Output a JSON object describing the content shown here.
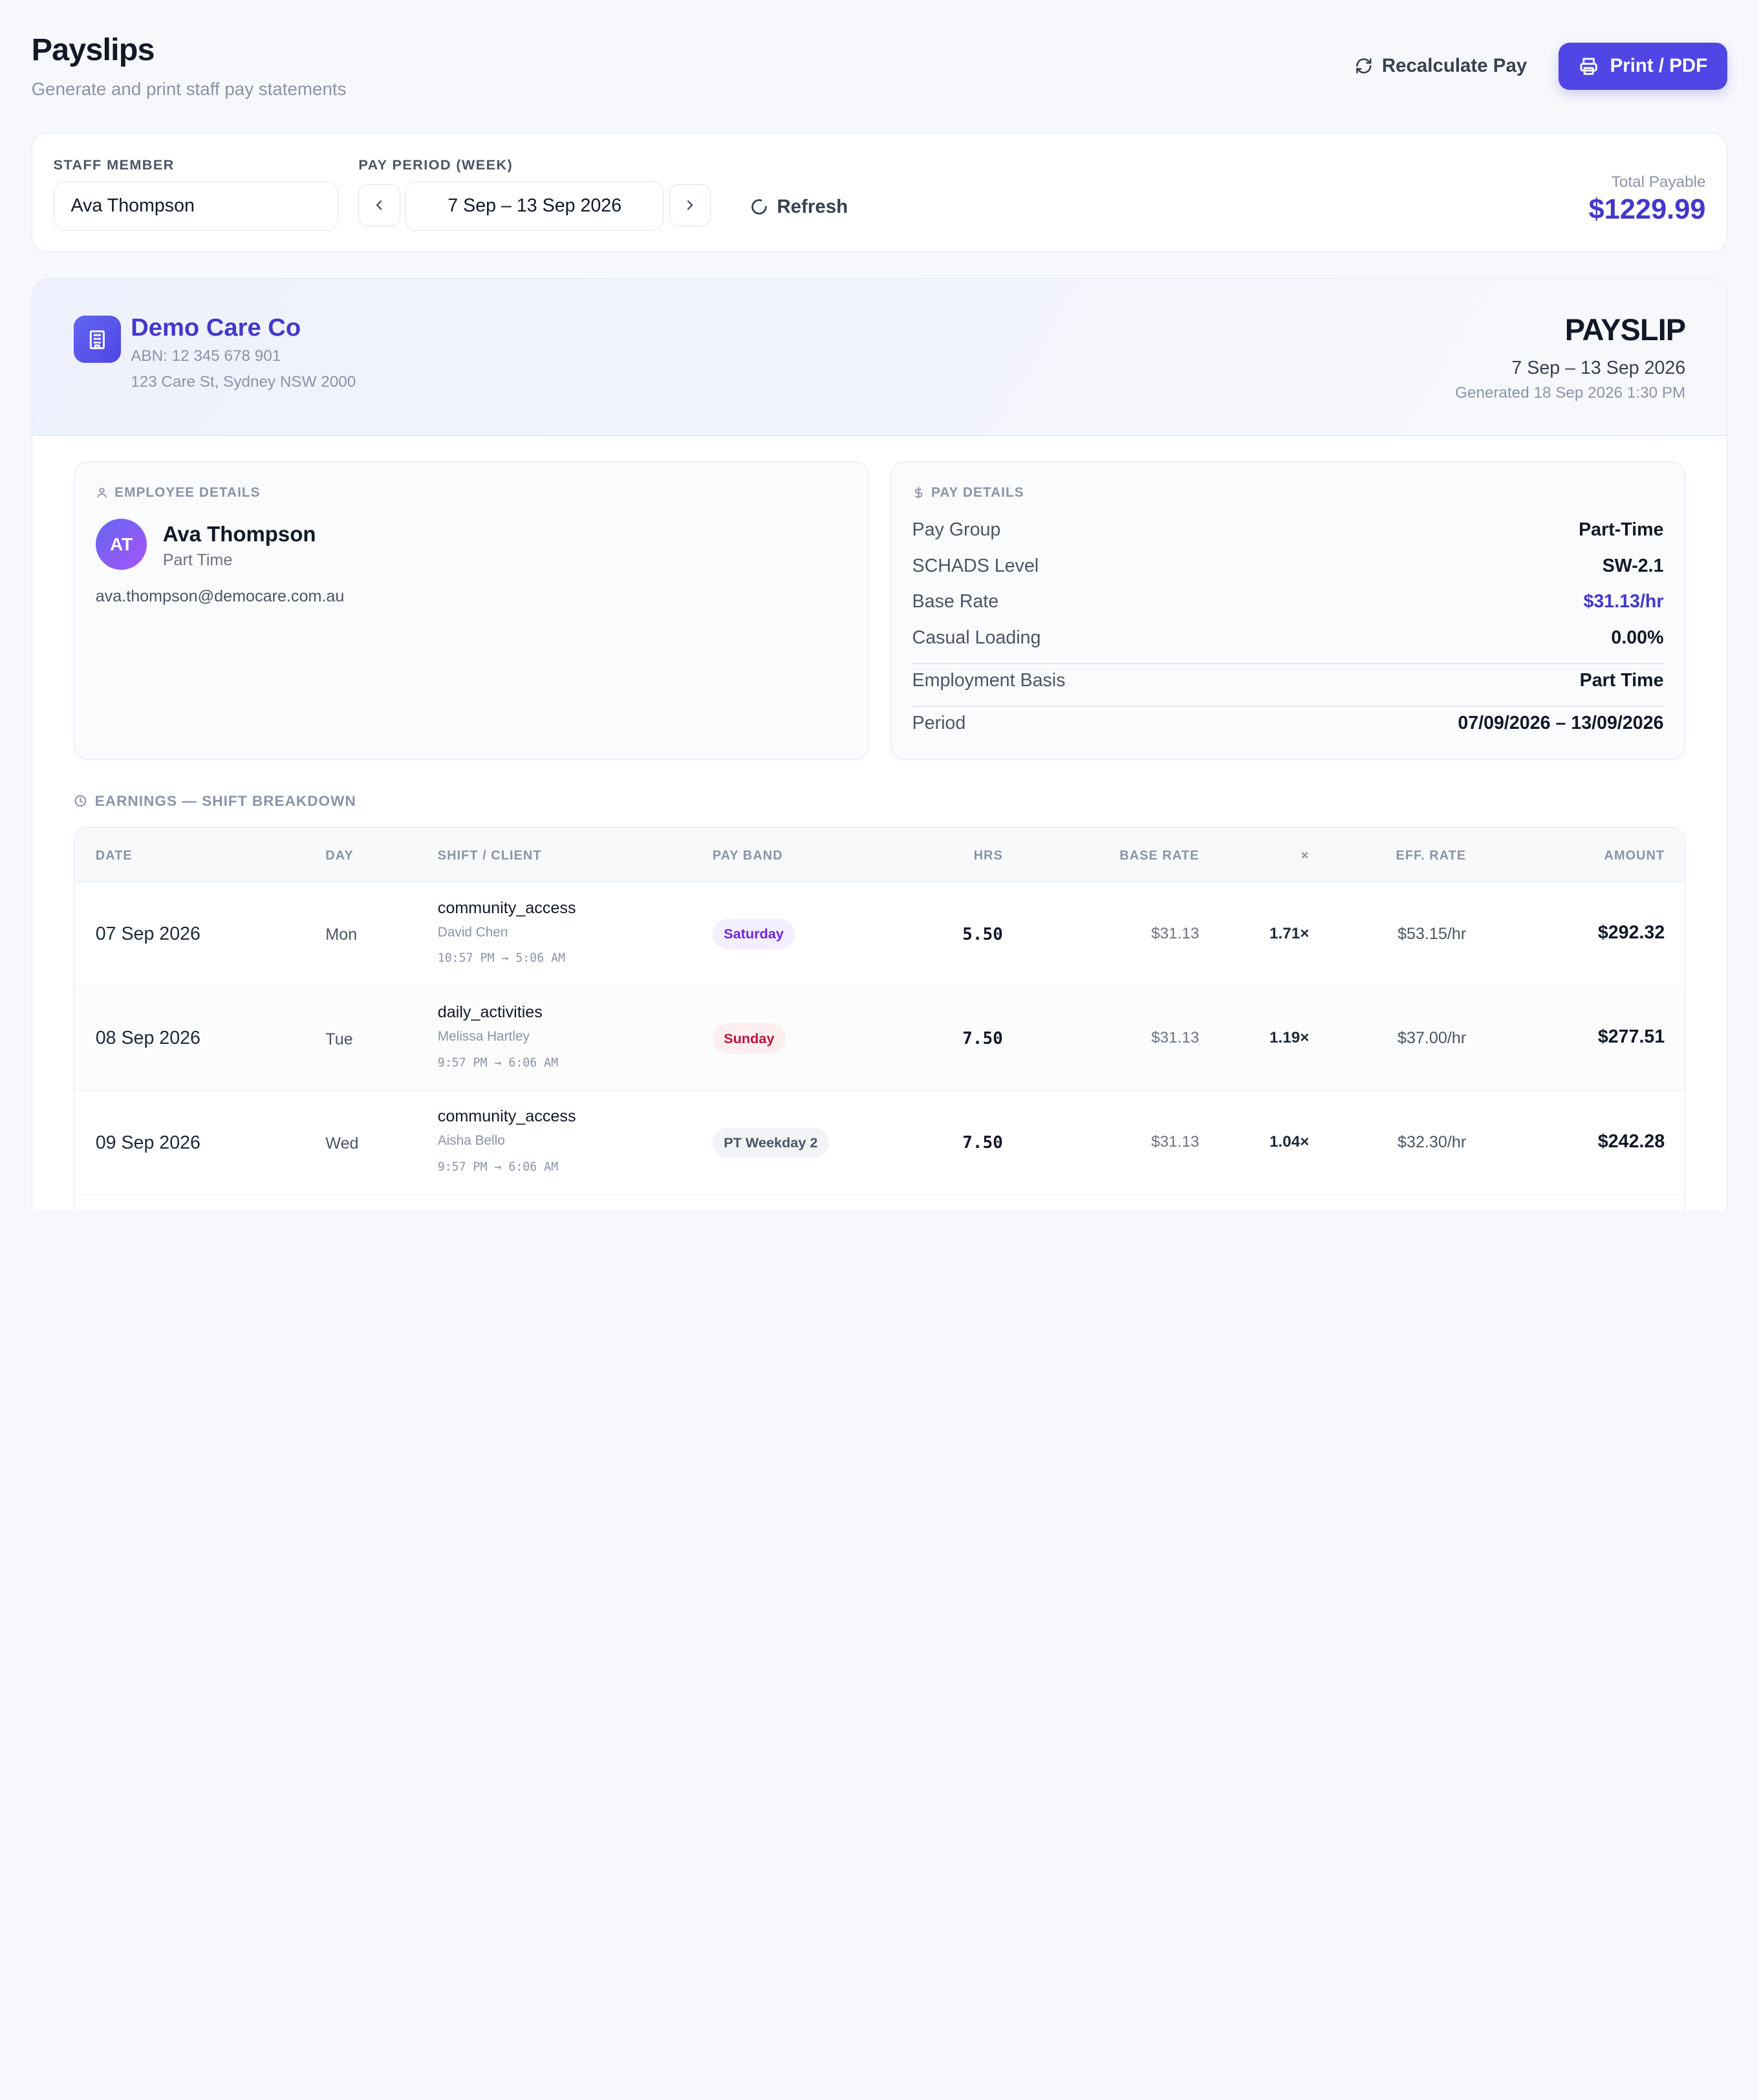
{
  "header": {
    "title": "Payslips",
    "subtitle": "Generate and print staff pay statements",
    "recalc_label": "Recalculate Pay",
    "print_label": "Print / PDF"
  },
  "filter": {
    "staff_label": "STAFF MEMBER",
    "staff_value": "Ava Thompson",
    "period_label": "PAY PERIOD (WEEK)",
    "period_value": "7 Sep – 13 Sep 2026",
    "refresh_label": "Refresh",
    "total_label": "Total Payable",
    "total_value": "$1229.99"
  },
  "company": {
    "name": "Demo Care Co",
    "abn": "ABN: 12 345 678 901",
    "address": "123 Care St, Sydney NSW 2000"
  },
  "payslip": {
    "title": "PAYSLIP",
    "period": "7 Sep – 13 Sep 2026",
    "generated": "Generated 18 Sep 2026 1:30 PM"
  },
  "employee": {
    "section_label": "EMPLOYEE DETAILS",
    "initials": "AT",
    "name": "Ava Thompson",
    "type": "Part Time",
    "email": "ava.thompson@democare.com.au"
  },
  "pay_details": {
    "section_label": "PAY DETAILS",
    "rows": [
      {
        "key": "Pay Group",
        "value": "Part-Time"
      },
      {
        "key": "SCHADS Level",
        "value": "SW-2.1"
      },
      {
        "key": "Base Rate",
        "value": "$31.13/hr"
      },
      {
        "key": "Casual Loading",
        "value": "0.00%"
      },
      {
        "key": "Employment Basis",
        "value": "Part Time"
      },
      {
        "key": "Period",
        "value": "07/09/2026 – 13/09/2026"
      }
    ]
  },
  "earnings": {
    "section_label": "EARNINGS — SHIFT BREAKDOWN",
    "columns": [
      "DATE",
      "DAY",
      "SHIFT / CLIENT",
      "PAY BAND",
      "HRS",
      "BASE RATE",
      "×",
      "EFF. RATE",
      "AMOUNT"
    ],
    "rows": [
      {
        "date": "07 Sep 2026",
        "day": "Mon",
        "shift": "community_access",
        "client": "David Chen",
        "time": "10:57 PM → 5:06 AM",
        "band": "Saturday",
        "hrs": "5.50",
        "base": "$31.13",
        "mult": "1.71×",
        "eff": "$53.15/hr",
        "amount": "$292.32"
      },
      {
        "date": "08 Sep 2026",
        "day": "Tue",
        "shift": "daily_activities",
        "client": "Melissa Hartley",
        "time": "9:57 PM → 6:06 AM",
        "band": "Sunday",
        "hrs": "7.50",
        "base": "$31.13",
        "mult": "1.19×",
        "eff": "$37.00/hr",
        "amount": "$277.51"
      },
      {
        "date": "09 Sep 2026",
        "day": "Wed",
        "shift": "community_access",
        "client": "Aisha Bello",
        "time": "9:57 PM → 6:06 AM",
        "band": "PT Weekday 2",
        "hrs": "7.50",
        "base": "$31.13",
        "mult": "1.04×",
        "eff": "$32.30/hr",
        "amount": "$242.28"
      }
    ]
  },
  "colors": {
    "accent": "#4f46e5",
    "saturday_bg": "#f3efff",
    "saturday_fg": "#6d28d9",
    "sunday_bg": "#fdeef0",
    "sunday_fg": "#be123c",
    "weekday_bg": "#f1f3f6",
    "weekday_fg": "#4b5563"
  }
}
